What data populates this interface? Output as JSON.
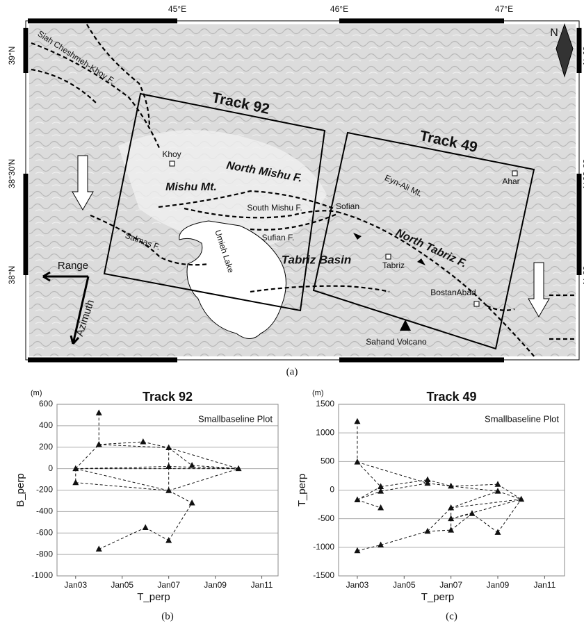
{
  "map": {
    "lon_labels": [
      "45°E",
      "46°E",
      "47°E"
    ],
    "lat_labels": [
      "39°N",
      "38°30'N",
      "38°N"
    ],
    "labels": [
      "Siah Cheshmeh-Khoy F.",
      "Track 92",
      "Track 49",
      "Khoy",
      "Mishu Mt.",
      "North Mishu F.",
      "South Mishu F.",
      "Sofian",
      "Eyn-Ali Mt.",
      "Ahar",
      "Salmas F.",
      "Umieh Lake",
      "Sufian F.",
      "Tabriz Basin",
      "Tabriz",
      "North Tabriz F.",
      "BostanAbad",
      "Sahand Volcano",
      "Range",
      "Azimuth",
      "N"
    ],
    "caption": "(a)"
  },
  "chart_data": [
    {
      "type": "scatter",
      "title": "Track 92",
      "unit": "(m)",
      "annotation": "Smallbaseline Plot",
      "x_label": "T_perp",
      "y_label": "B_perp",
      "caption": "(b)",
      "x": [
        2003.0,
        2003.0,
        2004.0,
        2004.0,
        2004.0,
        2005.9,
        2006.0,
        2007.0,
        2007.0,
        2007.0,
        2007.0,
        2008.0,
        2008.0,
        2010.0
      ],
      "values": [
        0,
        -130,
        520,
        225,
        -750,
        250,
        -550,
        195,
        20,
        -205,
        -670,
        30,
        -320,
        0
      ],
      "connections": [
        [
          2,
          3
        ],
        [
          0,
          3
        ],
        [
          0,
          1
        ],
        [
          0,
          8
        ],
        [
          0,
          9
        ],
        [
          0,
          13
        ],
        [
          3,
          5
        ],
        [
          3,
          7
        ],
        [
          5,
          7
        ],
        [
          7,
          11
        ],
        [
          7,
          13
        ],
        [
          8,
          13
        ],
        [
          11,
          13
        ],
        [
          1,
          9
        ],
        [
          9,
          12
        ],
        [
          9,
          13
        ],
        [
          7,
          9
        ],
        [
          4,
          6
        ],
        [
          6,
          10
        ],
        [
          10,
          12
        ]
      ],
      "color": "#111111",
      "xlim": [
        2002.2,
        2011.7
      ],
      "xticks": [
        {
          "value": 2003,
          "label": "Jan03"
        },
        {
          "value": 2005,
          "label": "Jan05"
        },
        {
          "value": 2007,
          "label": "Jan07"
        },
        {
          "value": 2009,
          "label": "Jan09"
        },
        {
          "value": 2011,
          "label": "Jan11"
        }
      ],
      "ylim": [
        -1000,
        600
      ],
      "yticks": [
        -1000,
        -800,
        -600,
        -400,
        -200,
        0,
        200,
        400,
        600
      ],
      "grid": true
    },
    {
      "type": "scatter",
      "title": "Track 49",
      "unit": "(m)",
      "annotation": "Smallbaseline Plot",
      "x_label": "T_perp",
      "y_label": "T_perp",
      "caption": "(c)",
      "x": [
        2003.0,
        2003.0,
        2003.0,
        2003.0,
        2004.0,
        2004.0,
        2004.0,
        2004.0,
        2006.0,
        2006.0,
        2006.0,
        2007.0,
        2007.0,
        2007.0,
        2007.0,
        2007.9,
        2009.0,
        2009.0,
        2009.0,
        2010.0
      ],
      "values": [
        1200,
        490,
        -170,
        -1060,
        60,
        -20,
        -310,
        -960,
        180,
        120,
        -720,
        70,
        -310,
        -500,
        -700,
        -410,
        100,
        -20,
        -740,
        -160
      ],
      "connections": [
        [
          0,
          1
        ],
        [
          1,
          4
        ],
        [
          1,
          9
        ],
        [
          2,
          4
        ],
        [
          2,
          6
        ],
        [
          2,
          5
        ],
        [
          4,
          8
        ],
        [
          5,
          9
        ],
        [
          8,
          11
        ],
        [
          9,
          11
        ],
        [
          11,
          16
        ],
        [
          11,
          17
        ],
        [
          16,
          19
        ],
        [
          17,
          19
        ],
        [
          3,
          7
        ],
        [
          7,
          10
        ],
        [
          10,
          12
        ],
        [
          10,
          14
        ],
        [
          12,
          19
        ],
        [
          13,
          19
        ],
        [
          12,
          13
        ],
        [
          13,
          14
        ],
        [
          14,
          15
        ],
        [
          15,
          18
        ],
        [
          18,
          19
        ],
        [
          12,
          17
        ],
        [
          13,
          15
        ]
      ],
      "color": "#111111",
      "xlim": [
        2002.2,
        2011.85
      ],
      "xticks": [
        {
          "value": 2003,
          "label": "Jan03"
        },
        {
          "value": 2005,
          "label": "Jan05"
        },
        {
          "value": 2007,
          "label": "Jan07"
        },
        {
          "value": 2009,
          "label": "Jan09"
        },
        {
          "value": 2011,
          "label": "Jan11"
        }
      ],
      "ylim": [
        -1500,
        1500
      ],
      "yticks": [
        -1500,
        -1000,
        -500,
        0,
        500,
        1000,
        1500
      ],
      "grid": true
    }
  ]
}
